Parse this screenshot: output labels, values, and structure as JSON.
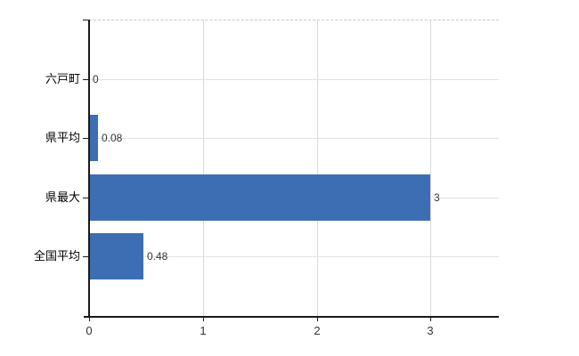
{
  "chart_data": {
    "type": "bar",
    "orientation": "horizontal",
    "title": "",
    "xlabel": "",
    "ylabel": "",
    "categories": [
      "六戸町",
      "県平均",
      "県最大",
      "全国平均"
    ],
    "values": [
      0,
      0.08,
      3,
      0.48
    ],
    "value_labels": [
      "0",
      "0.08",
      "3",
      "0.48"
    ],
    "x_ticks": [
      0,
      1,
      2,
      3
    ],
    "x_tick_labels": [
      "0",
      "1",
      "2",
      "3"
    ],
    "xlim": [
      0,
      3.6
    ],
    "grid": true,
    "legend": false,
    "colors": {
      "bar": "#3d6eb4",
      "h_gridline": "#dde5dc",
      "v_gridline": "#d9d9d9",
      "top_border": "#c9c9c9",
      "axis": "#1a1a1a",
      "text": "#333333"
    }
  }
}
